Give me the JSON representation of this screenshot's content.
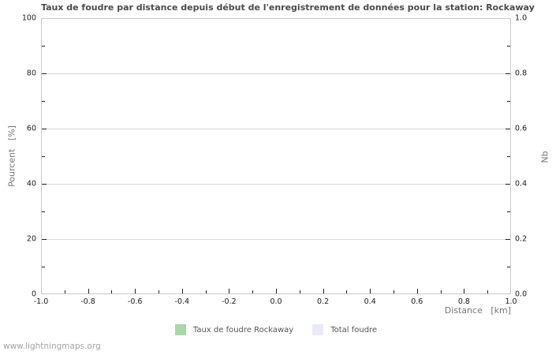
{
  "title": "Taux de foudre par distance depuis début de l'enregistrement de données pour la station: Rockaway",
  "footer": "www.lightningmaps.org",
  "axes": {
    "left": {
      "title": "Pourcent   [%]",
      "range": [
        0,
        100
      ],
      "ticks": [
        {
          "value": 0,
          "label": "0"
        },
        {
          "value": 20,
          "label": "20"
        },
        {
          "value": 40,
          "label": "40"
        },
        {
          "value": 60,
          "label": "60"
        },
        {
          "value": 80,
          "label": "80"
        },
        {
          "value": 100,
          "label": "100"
        }
      ],
      "minor": [
        10,
        30,
        50,
        70,
        90
      ]
    },
    "right": {
      "title": "Nb",
      "range": [
        0,
        1
      ],
      "ticks": [
        {
          "value": 0,
          "label": "0.0"
        },
        {
          "value": 0.2,
          "label": "0.2"
        },
        {
          "value": 0.4,
          "label": "0.4"
        },
        {
          "value": 0.6,
          "label": "0.6"
        },
        {
          "value": 0.8,
          "label": "0.8"
        },
        {
          "value": 1,
          "label": "1.0"
        }
      ],
      "minor": [
        0.1,
        0.3,
        0.5,
        0.7,
        0.9
      ]
    },
    "x": {
      "title": "Distance   [km]",
      "range": [
        -1,
        1
      ],
      "ticks": [
        {
          "value": -1,
          "label": "-1.0"
        },
        {
          "value": -0.8,
          "label": "-0.8"
        },
        {
          "value": -0.6,
          "label": "-0.6"
        },
        {
          "value": -0.4,
          "label": "-0.4"
        },
        {
          "value": -0.2,
          "label": "-0.2"
        },
        {
          "value": 0,
          "label": "0.0"
        },
        {
          "value": 0.2,
          "label": "0.2"
        },
        {
          "value": 0.4,
          "label": "0.4"
        },
        {
          "value": 0.6,
          "label": "0.6"
        },
        {
          "value": 0.8,
          "label": "0.8"
        },
        {
          "value": 1,
          "label": "1.0"
        }
      ],
      "minor": [
        -0.9,
        -0.7,
        -0.5,
        -0.3,
        -0.1,
        0.1,
        0.3,
        0.5,
        0.7,
        0.9
      ]
    }
  },
  "legend": {
    "items": [
      {
        "label": "Taux de foudre Rockaway",
        "color": "#abd6ab"
      },
      {
        "label": "Total foudre",
        "color": "#e9e9f8"
      }
    ]
  },
  "colors": {
    "title": "#4a4a4a",
    "axis_label": "#757575",
    "tick_label": "#1a1a1a",
    "legend_label": "#555555",
    "grid": "#d6d6d6",
    "border": "#c9c9c9",
    "tick": "#222222",
    "footer": "#a3a3a3",
    "background": "#ffffff"
  },
  "chart_data": {
    "type": "bar",
    "title": "Taux de foudre par distance depuis début de l'enregistrement de données pour la station: Rockaway",
    "xlabel": "Distance [km]",
    "ylabel_left": "Pourcent [%]",
    "ylabel_right": "Nb",
    "xlim": [
      -1.0,
      1.0
    ],
    "ylim_left": [
      0,
      100
    ],
    "ylim_right": [
      0.0,
      1.0
    ],
    "x_ticks": [
      -1.0,
      -0.8,
      -0.6,
      -0.4,
      -0.2,
      0.0,
      0.2,
      0.4,
      0.6,
      0.8,
      1.0
    ],
    "grid": "horizontal-only",
    "legend_position": "bottom-center",
    "series": [
      {
        "name": "Taux de foudre Rockaway",
        "axis": "left",
        "color": "#abd6ab",
        "x": [],
        "values": []
      },
      {
        "name": "Total foudre",
        "axis": "right",
        "color": "#e9e9f8",
        "x": [],
        "values": []
      }
    ]
  }
}
